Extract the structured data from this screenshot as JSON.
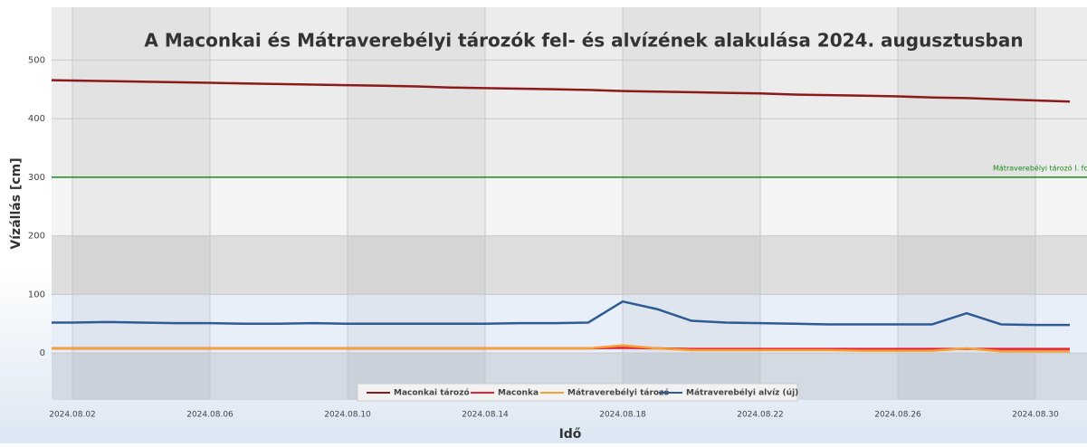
{
  "chart_data": {
    "type": "line",
    "title": "A Maconkai és Mátraverebélyi tározók fel- és alvízének alakulása 2024. augusztusban",
    "x_label": "Idő",
    "y_label": "Vízállás [cm]",
    "x": [
      "2024.08.01",
      "2024.08.02",
      "2024.08.03",
      "2024.08.04",
      "2024.08.05",
      "2024.08.06",
      "2024.08.07",
      "2024.08.08",
      "2024.08.09",
      "2024.08.10",
      "2024.08.11",
      "2024.08.12",
      "2024.08.13",
      "2024.08.14",
      "2024.08.15",
      "2024.08.16",
      "2024.08.17",
      "2024.08.18",
      "2024.08.19",
      "2024.08.20",
      "2024.08.21",
      "2024.08.22",
      "2024.08.23",
      "2024.08.24",
      "2024.08.25",
      "2024.08.26",
      "2024.08.27",
      "2024.08.28",
      "2024.08.29",
      "2024.08.30",
      "2024.08.31"
    ],
    "series": [
      {
        "name": "Maconkai tározó",
        "color": "#8b1a1a",
        "values": [
          466,
          465,
          464,
          463,
          462,
          461,
          460,
          459,
          458,
          457,
          456,
          455,
          453,
          452,
          451,
          450,
          449,
          447,
          446,
          445,
          444,
          443,
          441,
          440,
          439,
          438,
          436,
          435,
          433,
          431,
          429
        ]
      },
      {
        "name": "Maconka",
        "color": "#e8213a",
        "values": [
          8,
          8,
          8,
          8,
          8,
          8,
          8,
          8,
          8,
          8,
          8,
          8,
          8,
          8,
          8,
          8,
          8,
          9,
          8,
          7,
          7,
          7,
          7,
          7,
          7,
          7,
          7,
          7,
          7,
          7,
          7
        ]
      },
      {
        "name": "Mátraverebélyi tározó",
        "color": "#f5a030",
        "values": [
          8,
          8,
          8,
          8,
          8,
          8,
          8,
          8,
          8,
          8,
          8,
          8,
          8,
          8,
          8,
          8,
          8,
          13,
          8,
          5,
          5,
          5,
          5,
          5,
          4,
          4,
          4,
          8,
          3,
          3,
          3
        ]
      },
      {
        "name": "Mátraverebélyi alvíz (új)",
        "color": "#2e5a95",
        "values": [
          52,
          52,
          53,
          52,
          51,
          51,
          50,
          50,
          51,
          50,
          50,
          50,
          50,
          50,
          51,
          51,
          52,
          88,
          75,
          55,
          52,
          51,
          50,
          49,
          49,
          49,
          49,
          68,
          49,
          48,
          48
        ]
      }
    ],
    "thresholds": [
      {
        "value": 300,
        "label": "Mátraverebélyi tározó I. fok",
        "color": "#1a8a1a"
      }
    ],
    "xlim": [
      "2024.08.01",
      "2024.08.31"
    ],
    "xticks": [
      "2024.08.02",
      "2024.08.06",
      "2024.08.10",
      "2024.08.14",
      "2024.08.18",
      "2024.08.22",
      "2024.08.26",
      "2024.08.30"
    ],
    "ylim": [
      -80,
      590
    ],
    "yticks": [
      0,
      100,
      200,
      300,
      400,
      500
    ],
    "grid": true,
    "legend": "bottom"
  }
}
